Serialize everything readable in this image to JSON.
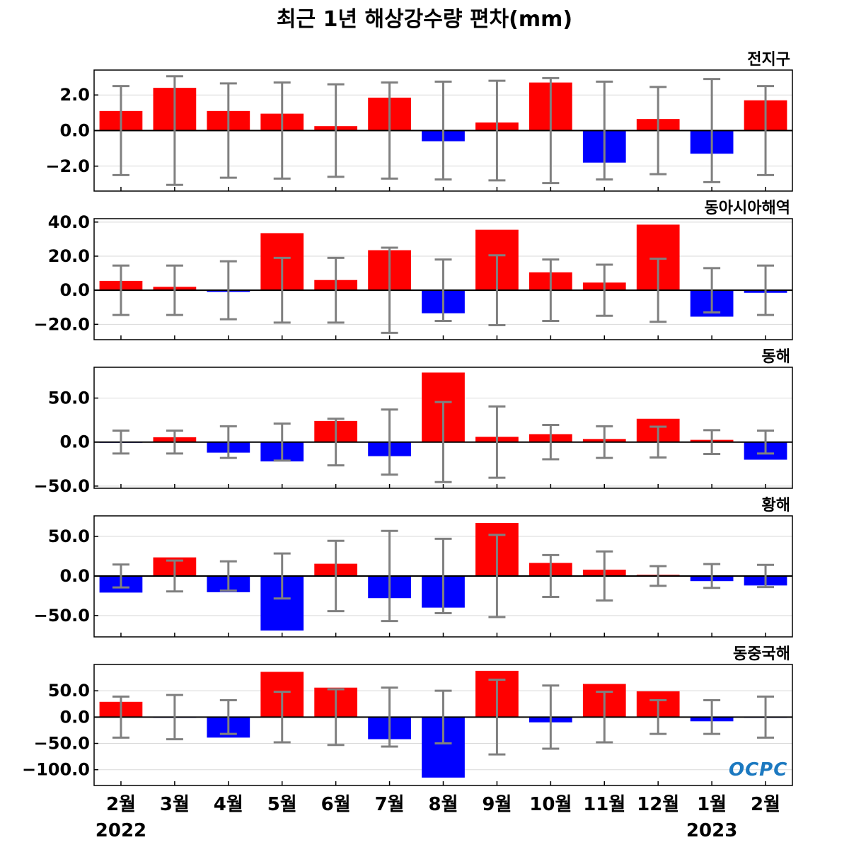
{
  "title": "최근 1년 해상강수량 편차(mm)",
  "logo_text": "OCPC",
  "colors": {
    "positive": "#ff0000",
    "negative": "#0000ff",
    "error_bar": "#808080",
    "grid": "#d9d9d9"
  },
  "chart_data": [
    {
      "type": "bar",
      "title": "전지구",
      "categories": [
        "2월",
        "3월",
        "4월",
        "5월",
        "6월",
        "7월",
        "8월",
        "9월",
        "10월",
        "11월",
        "12월",
        "1월",
        "2월"
      ],
      "year_labels": [
        "2022",
        "2023"
      ],
      "values": [
        1.1,
        2.4,
        1.1,
        0.95,
        0.25,
        1.85,
        -0.6,
        0.45,
        2.7,
        -1.8,
        0.65,
        -1.3,
        1.7
      ],
      "error": [
        2.5,
        3.05,
        2.65,
        2.7,
        2.6,
        2.7,
        2.75,
        2.8,
        2.95,
        2.75,
        2.45,
        2.9,
        2.5
      ],
      "ylim": [
        -3.4,
        3.4
      ],
      "yticks": [
        -2.0,
        0.0,
        2.0
      ],
      "ytick_labels": [
        "−2.0",
        "0.0",
        "2.0"
      ],
      "grid": true
    },
    {
      "type": "bar",
      "title": "동아시아해역",
      "categories": [
        "2월",
        "3월",
        "4월",
        "5월",
        "6월",
        "7월",
        "8월",
        "9월",
        "10월",
        "11월",
        "12월",
        "1월",
        "2월"
      ],
      "values": [
        5.5,
        2.0,
        -1.0,
        33.5,
        6.0,
        23.5,
        -13.5,
        35.5,
        10.5,
        4.5,
        38.5,
        -15.5,
        -1.5
      ],
      "error": [
        14.5,
        14.5,
        17.0,
        19.0,
        19.0,
        25.0,
        18.0,
        20.5,
        18.0,
        15.0,
        18.5,
        13.0,
        14.5
      ],
      "ylim": [
        -29.0,
        42.0
      ],
      "yticks": [
        -20.0,
        0.0,
        20.0,
        40.0
      ],
      "ytick_labels": [
        "−20.0",
        "0.0",
        "20.0",
        "40.0"
      ],
      "grid": true
    },
    {
      "type": "bar",
      "title": "동해",
      "categories": [
        "2월",
        "3월",
        "4월",
        "5월",
        "6월",
        "7월",
        "8월",
        "9월",
        "10월",
        "11월",
        "12월",
        "1월",
        "2월"
      ],
      "values": [
        -0.5,
        5.5,
        -12.0,
        -22.0,
        24.0,
        -16.0,
        79.0,
        6.0,
        9.0,
        3.5,
        26.5,
        2.5,
        -20.0
      ],
      "error": [
        13.0,
        13.0,
        18.0,
        21.0,
        26.5,
        37.0,
        45.5,
        40.5,
        19.5,
        18.0,
        17.5,
        13.5,
        13.0
      ],
      "ylim": [
        -52.5,
        85.0
      ],
      "yticks": [
        -50.0,
        0.0,
        50.0
      ],
      "ytick_labels": [
        "−50.0",
        "0.0",
        "50.0"
      ],
      "grid": true
    },
    {
      "type": "bar",
      "title": "황해",
      "categories": [
        "2월",
        "3월",
        "4월",
        "5월",
        "6월",
        "7월",
        "8월",
        "9월",
        "10월",
        "11월",
        "12월",
        "1월",
        "2월"
      ],
      "values": [
        -21.0,
        23.5,
        -20.5,
        -69.0,
        15.5,
        -28.0,
        -40.0,
        67.0,
        16.5,
        8.0,
        1.5,
        -6.5,
        -12.0
      ],
      "error": [
        14.5,
        19.5,
        18.5,
        28.5,
        44.5,
        57.0,
        47.0,
        52.0,
        26.5,
        31.0,
        12.5,
        15.0,
        14.0
      ],
      "ylim": [
        -77.0,
        76.0
      ],
      "yticks": [
        -50.0,
        0.0,
        50.0
      ],
      "ytick_labels": [
        "−50.0",
        "0.0",
        "50.0"
      ],
      "grid": true
    },
    {
      "type": "bar",
      "title": "동중국해",
      "categories": [
        "2월",
        "3월",
        "4월",
        "5월",
        "6월",
        "7월",
        "8월",
        "9월",
        "10월",
        "11월",
        "12월",
        "1월",
        "2월"
      ],
      "values": [
        29.0,
        -1.0,
        -39.0,
        86.0,
        56.0,
        -42.0,
        -115.0,
        88.0,
        -10.0,
        63.0,
        49.0,
        -8.0,
        -1.0
      ],
      "error": [
        39.0,
        42.0,
        32.0,
        48.0,
        53.0,
        56.0,
        50.0,
        71.0,
        60.0,
        48.0,
        32.0,
        32.0,
        39.0
      ],
      "ylim": [
        -130.0,
        100.0
      ],
      "yticks": [
        -100.0,
        -50.0,
        0.0,
        50.0
      ],
      "ytick_labels": [
        "−100.0",
        "−50.0",
        "0.0",
        "50.0"
      ],
      "grid": true
    }
  ]
}
